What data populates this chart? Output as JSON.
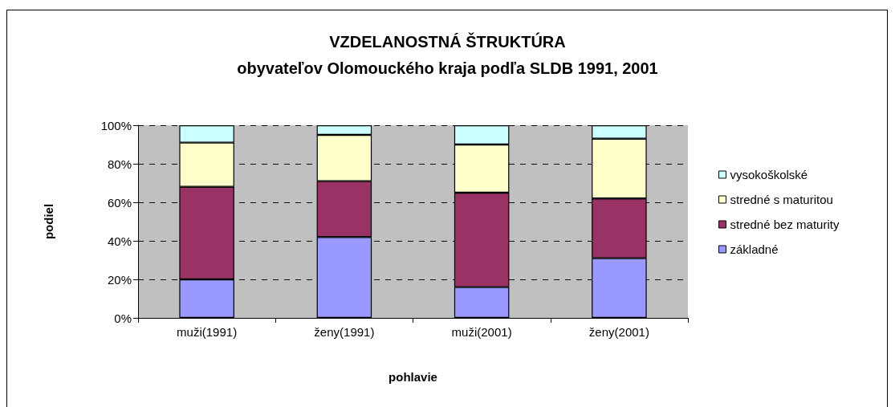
{
  "chart_data": {
    "type": "bar",
    "title": "VZDELANOSTNÁ ŠTRUKTÚRA\nobyvateľov Olomouckého kraja podľa SLDB 1991, 2001",
    "xlabel": "pohlavie",
    "ylabel": "podiel",
    "categories": [
      "muži(1991)",
      "ženy(1991)",
      "muži(2001)",
      "ženy(2001)"
    ],
    "series": [
      {
        "name": "základné",
        "color": "#9999ff",
        "values": [
          20,
          42,
          16,
          31
        ]
      },
      {
        "name": "stredné bez maturity",
        "color": "#993366",
        "values": [
          48,
          29,
          49,
          31
        ]
      },
      {
        "name": "stredné s maturitou",
        "color": "#ffffcc",
        "values": [
          23,
          24,
          25,
          31
        ]
      },
      {
        "name": "vysokoškolské",
        "color": "#ccffff",
        "values": [
          9,
          5,
          10,
          7
        ]
      }
    ],
    "stacked": true,
    "ylim": [
      0,
      100
    ],
    "yticks": [
      {
        "value": 0,
        "label": "0%"
      },
      {
        "value": 20,
        "label": "20%"
      },
      {
        "value": 40,
        "label": "40%"
      },
      {
        "value": 60,
        "label": "60%"
      },
      {
        "value": 80,
        "label": "80%"
      },
      {
        "value": 100,
        "label": "100%"
      }
    ],
    "grid": "y",
    "legend": "right"
  }
}
